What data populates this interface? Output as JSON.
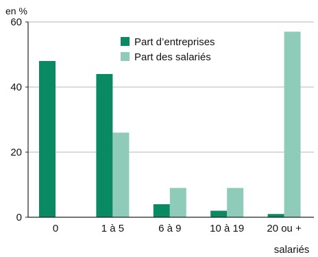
{
  "chart_data": {
    "type": "bar",
    "unit_label": "en %",
    "categories": [
      "0",
      "1 à 5",
      "6 à 9",
      "10 à 19",
      "20 ou +"
    ],
    "category_suffix_last": "salariés",
    "series": [
      {
        "name": "Part d’entreprises",
        "values": [
          48,
          44,
          4,
          2,
          1
        ],
        "color": "#0a8a62"
      },
      {
        "name": "Part des salariés",
        "values": [
          0,
          26,
          9,
          9,
          57
        ],
        "color": "#8ecbb8"
      }
    ],
    "ylim": [
      0,
      60
    ],
    "yticks": [
      0,
      20,
      40,
      60
    ],
    "grid": true,
    "legend_position": "top-center"
  }
}
